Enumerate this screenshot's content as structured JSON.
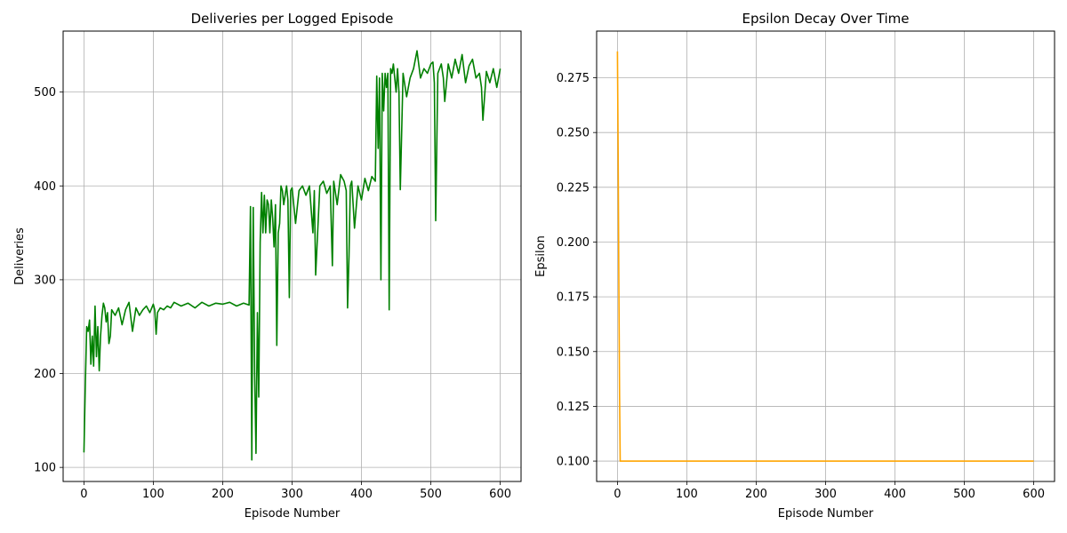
{
  "chart_data": [
    {
      "type": "line",
      "title": "Deliveries per Logged Episode",
      "xlabel": "Episode Number",
      "ylabel": "Deliveries",
      "xlim": [
        -30,
        630
      ],
      "ylim": [
        85,
        565
      ],
      "xticks": [
        0,
        100,
        200,
        300,
        400,
        500,
        600
      ],
      "yticks": [
        100,
        200,
        300,
        400,
        500
      ],
      "grid": true,
      "series": [
        {
          "color": "#008000",
          "x": [
            0,
            2,
            4,
            6,
            8,
            10,
            12,
            14,
            16,
            18,
            20,
            22,
            24,
            26,
            28,
            30,
            32,
            34,
            36,
            38,
            40,
            45,
            50,
            55,
            60,
            65,
            70,
            75,
            80,
            85,
            90,
            95,
            100,
            102,
            104,
            106,
            110,
            115,
            120,
            125,
            130,
            140,
            150,
            160,
            170,
            180,
            190,
            200,
            210,
            220,
            230,
            238,
            240,
            242,
            244,
            246,
            248,
            250,
            252,
            254,
            256,
            258,
            260,
            262,
            264,
            266,
            268,
            270,
            272,
            274,
            276,
            278,
            280,
            282,
            284,
            286,
            288,
            290,
            292,
            294,
            296,
            298,
            300,
            305,
            310,
            315,
            320,
            325,
            330,
            332,
            334,
            340,
            345,
            350,
            355,
            358,
            360,
            365,
            370,
            375,
            378,
            380,
            382,
            384,
            386,
            390,
            395,
            400,
            405,
            410,
            415,
            420,
            422,
            424,
            426,
            428,
            430,
            432,
            434,
            436,
            438,
            440,
            442,
            444,
            446,
            450,
            452,
            454,
            456,
            460,
            465,
            470,
            475,
            480,
            485,
            490,
            495,
            500,
            503,
            505,
            507,
            510,
            515,
            518,
            520,
            525,
            530,
            535,
            540,
            545,
            550,
            555,
            560,
            565,
            570,
            573,
            575,
            580,
            585,
            590,
            595,
            600
          ],
          "y": [
            116,
            190,
            250,
            245,
            257,
            210,
            240,
            208,
            272,
            218,
            250,
            203,
            240,
            262,
            275,
            270,
            255,
            265,
            232,
            240,
            268,
            262,
            270,
            252,
            268,
            276,
            245,
            270,
            262,
            268,
            272,
            265,
            274,
            268,
            242,
            265,
            270,
            268,
            272,
            270,
            276,
            272,
            275,
            270,
            276,
            272,
            275,
            274,
            276,
            272,
            275,
            273,
            378,
            108,
            377,
            200,
            115,
            265,
            175,
            340,
            393,
            350,
            390,
            350,
            385,
            380,
            350,
            385,
            365,
            335,
            380,
            230,
            350,
            360,
            400,
            395,
            380,
            390,
            400,
            385,
            281,
            395,
            398,
            360,
            395,
            400,
            390,
            400,
            350,
            395,
            305,
            400,
            405,
            392,
            400,
            315,
            405,
            380,
            412,
            405,
            395,
            270,
            325,
            400,
            405,
            355,
            400,
            385,
            408,
            395,
            410,
            405,
            517,
            440,
            515,
            300,
            520,
            480,
            520,
            505,
            520,
            268,
            525,
            520,
            530,
            500,
            525,
            500,
            396,
            520,
            495,
            515,
            525,
            544,
            515,
            525,
            520,
            530,
            532,
            510,
            363,
            520,
            530,
            515,
            490,
            530,
            515,
            535,
            520,
            540,
            510,
            528,
            535,
            515,
            520,
            505,
            470,
            522,
            510,
            525,
            505,
            525
          ]
        }
      ]
    },
    {
      "type": "line",
      "title": "Epsilon Decay Over Time",
      "xlabel": "Episode Number",
      "ylabel": "Epsilon",
      "xlim": [
        -30,
        630
      ],
      "ylim": [
        0.0907,
        0.2963
      ],
      "xticks": [
        0,
        100,
        200,
        300,
        400,
        500,
        600
      ],
      "yticks": [
        0.1,
        0.125,
        0.15,
        0.175,
        0.2,
        0.225,
        0.25,
        0.275
      ],
      "grid": true,
      "series": [
        {
          "color": "#ffa500",
          "x": [
            0,
            1,
            2,
            3,
            4,
            5,
            600
          ],
          "y": [
            0.287,
            0.24,
            0.18,
            0.13,
            0.1,
            0.1,
            0.1
          ]
        }
      ]
    }
  ]
}
